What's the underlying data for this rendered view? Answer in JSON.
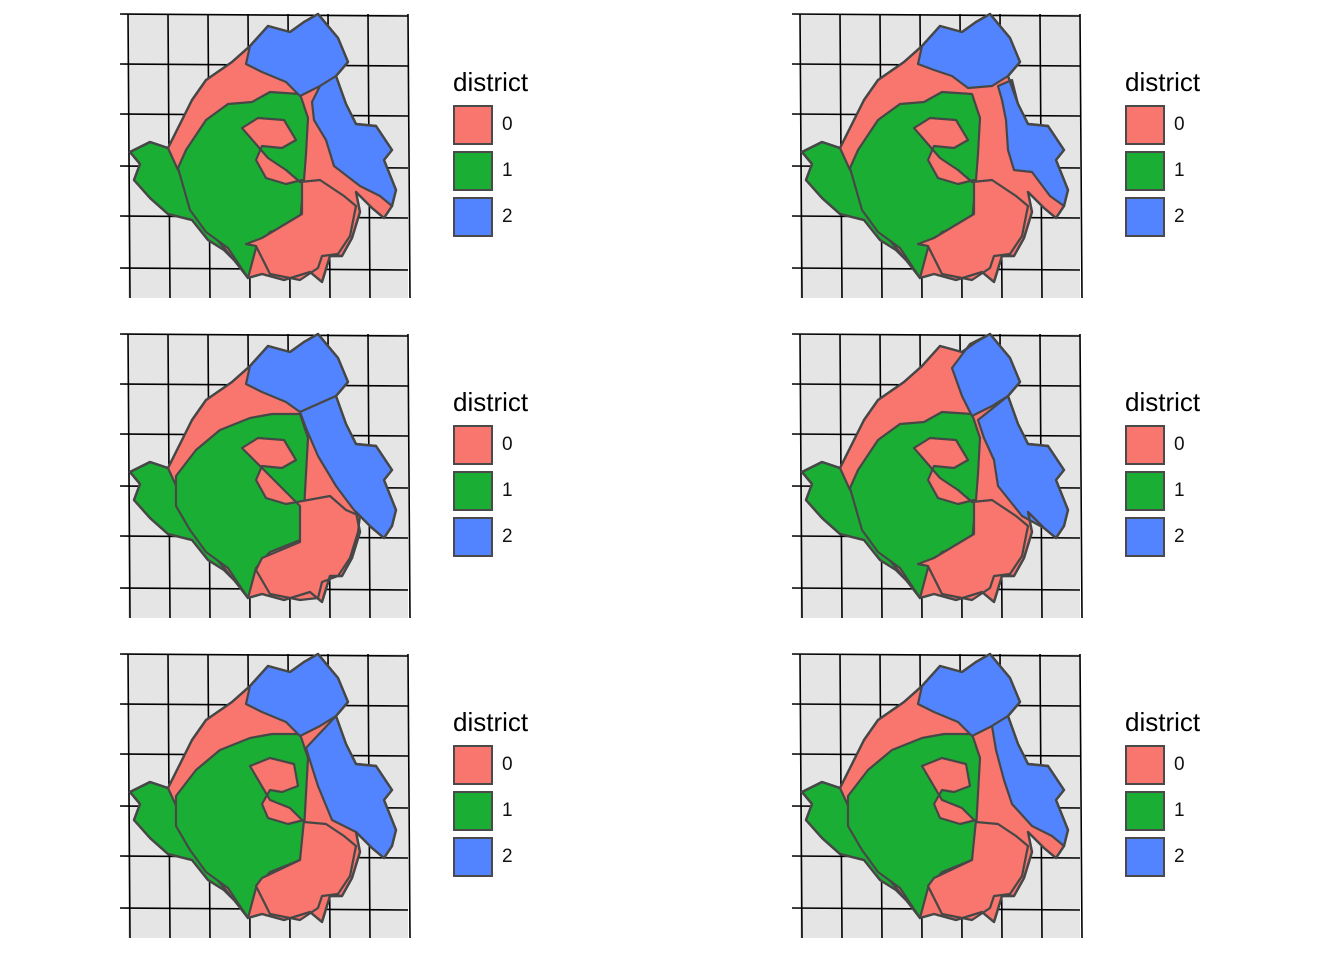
{
  "legend": {
    "title": "district",
    "items": [
      {
        "label": "0",
        "color": "#F8766D"
      },
      {
        "label": "1",
        "color": "#1BAE34"
      },
      {
        "label": "2",
        "color": "#5284FF"
      }
    ]
  },
  "colors": {
    "background": "#E5E5E5",
    "grid": "#000000",
    "border": "#474747"
  },
  "panels": [
    {
      "id": "p1",
      "variant": 0
    },
    {
      "id": "p2",
      "variant": 1
    },
    {
      "id": "p3",
      "variant": 2
    },
    {
      "id": "p4",
      "variant": 3
    },
    {
      "id": "p5",
      "variant": 4
    },
    {
      "id": "p6",
      "variant": 5
    }
  ]
}
